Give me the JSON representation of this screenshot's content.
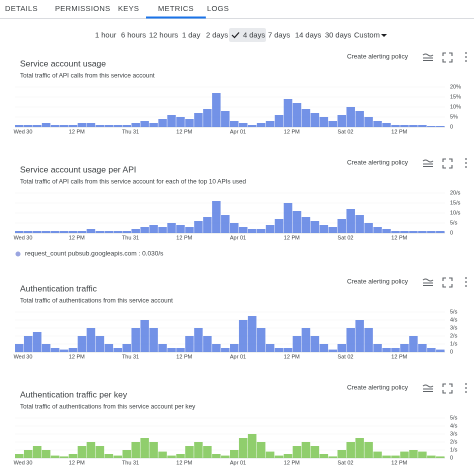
{
  "tabs": [
    {
      "label": "DETAILS"
    },
    {
      "label": "PERMISSIONS"
    },
    {
      "label": "KEYS"
    },
    {
      "label": "METRICS",
      "selected": true
    },
    {
      "label": "LOGS"
    }
  ],
  "time_ranges": [
    {
      "label": "1 hour"
    },
    {
      "label": "6 hours"
    },
    {
      "label": "12 hours"
    },
    {
      "label": "1 day"
    },
    {
      "label": "2 days"
    },
    {
      "label": "4 days",
      "selected": true
    },
    {
      "label": "7 days"
    },
    {
      "label": "14 days"
    },
    {
      "label": "30 days"
    },
    {
      "label": "Custom"
    }
  ],
  "chart_data": [
    {
      "type": "bar",
      "title": "Service account usage",
      "subtitle": "Total traffic of API calls from this service account",
      "action": "Create alerting policy",
      "color": "#5b7fe3",
      "ylim": [
        0,
        20
      ],
      "yticks": [
        0,
        {
          "value": 5,
          "label": "5%"
        },
        {
          "value": 10,
          "label": "10%"
        },
        {
          "value": 15,
          "label": "15%"
        },
        {
          "value": 20,
          "label": "20%"
        }
      ],
      "x_labels": [
        "Wed 30",
        "12 PM",
        "Thu 31",
        "12 PM",
        "Apr 01",
        "12 PM",
        "Sat 02",
        "12 PM"
      ],
      "values": [
        1,
        1,
        1,
        2,
        1,
        1,
        1,
        2,
        2,
        1,
        1,
        1,
        1,
        2,
        3,
        2,
        4,
        6,
        5,
        4,
        7,
        9,
        17,
        8,
        3,
        2,
        1,
        2,
        3,
        6,
        14,
        12,
        9,
        7,
        5,
        3,
        6,
        10,
        8,
        5,
        3,
        2,
        1,
        1,
        1,
        1,
        0.5,
        0.5
      ]
    },
    {
      "type": "bar",
      "title": "Service account usage per API",
      "subtitle": "Total traffic of API calls from this service account for each of the top 10 APIs used",
      "action": "Create alerting policy",
      "color": "#5b7fe3",
      "ylim": [
        0,
        20
      ],
      "yticks": [
        0,
        {
          "value": 5,
          "label": "5/s"
        },
        {
          "value": 10,
          "label": "10/s"
        },
        {
          "value": 15,
          "label": "15/s"
        },
        {
          "value": 20,
          "label": "20/s"
        }
      ],
      "x_labels": [
        "Wed 30",
        "12 PM",
        "Thu 31",
        "12 PM",
        "Apr 01",
        "12 PM",
        "Sat 02",
        "12 PM"
      ],
      "values": [
        1,
        1,
        1,
        1,
        1,
        1,
        1,
        1,
        2,
        1,
        1,
        1,
        1,
        2,
        3,
        4,
        3,
        5,
        4,
        3,
        6,
        8,
        16,
        9,
        5,
        3,
        2,
        2,
        4,
        7,
        15,
        11,
        8,
        6,
        4,
        3,
        7,
        12,
        9,
        5,
        3,
        2,
        1,
        1,
        1,
        1,
        1,
        1
      ],
      "legend": "request_count pubsub.googleapis.com : 0.030/s"
    },
    {
      "type": "bar",
      "title": "Authentication traffic",
      "subtitle": "Total traffic of authentications from this service account",
      "action": "Create alerting policy",
      "color": "#5b7fe3",
      "ylim": [
        0,
        5
      ],
      "yticks": [
        0,
        {
          "value": 1,
          "label": "1/s"
        },
        {
          "value": 2,
          "label": "2/s"
        },
        {
          "value": 3,
          "label": "3/s"
        },
        {
          "value": 4,
          "label": "4/s"
        },
        {
          "value": 5,
          "label": "5/s"
        }
      ],
      "x_labels": [
        "Wed 30",
        "12 PM",
        "Thu 31",
        "12 PM",
        "Apr 01",
        "12 PM",
        "Sat 02",
        "12 PM"
      ],
      "values": [
        1,
        2,
        2.5,
        1,
        0.5,
        0.3,
        0.5,
        2,
        3,
        2,
        1,
        0.5,
        1,
        3,
        4,
        3,
        1,
        0.5,
        0.5,
        2,
        3,
        2,
        1,
        0.5,
        1,
        4,
        4.5,
        3,
        1,
        0.5,
        0.5,
        2,
        3,
        2,
        1,
        0.3,
        1,
        3,
        4,
        3,
        1,
        0.5,
        0.5,
        1,
        2,
        1,
        0.5,
        0.3
      ]
    },
    {
      "type": "bar",
      "title": "Authentication traffic per key",
      "subtitle": "Total traffic of authentications from this service account per key",
      "action": "Create alerting policy",
      "color": "#7cc653",
      "ylim": [
        0,
        5
      ],
      "yticks": [
        0,
        {
          "value": 1,
          "label": "1/s"
        },
        {
          "value": 2,
          "label": "2/s"
        },
        {
          "value": 3,
          "label": "3/s"
        },
        {
          "value": 4,
          "label": "4/s"
        },
        {
          "value": 5,
          "label": "5/s"
        }
      ],
      "x_labels": [
        "Wed 30",
        "12 PM",
        "Thu 31",
        "12 PM",
        "Apr 01",
        "12 PM",
        "Sat 02",
        "12 PM"
      ],
      "values": [
        0.5,
        1,
        1.5,
        1,
        0.3,
        0.2,
        0.5,
        1.5,
        2,
        1.5,
        0.5,
        0.3,
        1,
        2,
        2.5,
        2,
        0.8,
        0.3,
        0.5,
        1.5,
        2,
        1.5,
        0.5,
        0.3,
        1,
        2.5,
        3,
        2,
        0.8,
        0.3,
        0.5,
        1.5,
        2,
        1.5,
        0.5,
        0.2,
        1,
        2,
        2.5,
        2,
        0.8,
        0.3,
        0.3,
        0.8,
        1,
        0.8,
        0.3,
        0.2
      ]
    }
  ]
}
